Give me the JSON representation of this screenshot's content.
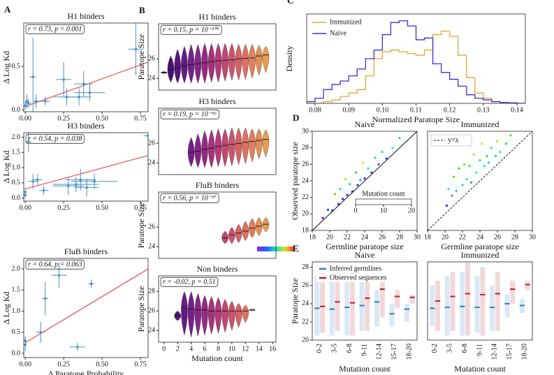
{
  "chart_data": [
    {
      "type": "scatter",
      "panel": "A",
      "title": "H1 binders",
      "annotation": "r = 0.73, p = 0.001",
      "ylabel": "Δ Log Kd",
      "x": [
        0.0,
        0.01,
        0.02,
        0.05,
        0.07,
        0.13,
        0.25,
        0.27,
        0.35,
        0.38,
        0.42,
        0.72
      ],
      "y": [
        0.05,
        0.1,
        0.08,
        0.38,
        0.1,
        0.1,
        0.35,
        0.15,
        0.15,
        0.3,
        0.2,
        0.7
      ],
      "xerr": [
        0.005,
        0.01,
        0.02,
        0.02,
        0.02,
        0.03,
        0.05,
        0.08,
        0.08,
        0.06,
        0.1,
        0.05
      ],
      "yerr": [
        0.05,
        0.08,
        0.05,
        0.45,
        0.08,
        0.05,
        0.2,
        0.1,
        0.1,
        0.15,
        0.1,
        0.3
      ],
      "color": "#4a90c4",
      "fit_line": {
        "x": [
          0,
          0.8
        ],
        "y": [
          0.04,
          0.55
        ],
        "color": "#e8302a"
      },
      "xlim": [
        -0.01,
        0.8
      ],
      "ylim": [
        -0.02,
        1.0
      ],
      "xticks": [
        {
          "value": 0,
          "label": "0.00"
        },
        0.25,
        {
          "value": 0.5,
          "label": "0.50"
        },
        0.75
      ],
      "yticks": [
        {
          "value": 0,
          "label": "0.0"
        },
        0.5
      ]
    },
    {
      "type": "scatter",
      "title": "H3 binders",
      "annotation": "r = 0.54, p = 0.038",
      "ylabel": "Δ Log Kd",
      "x": [
        0.0,
        0.0,
        0.02,
        0.05,
        0.08,
        0.12,
        0.28,
        0.33,
        0.36,
        0.4,
        0.45,
        0.8
      ],
      "y": [
        0.2,
        0.1,
        1.85,
        0.55,
        0.6,
        0.25,
        0.4,
        0.45,
        0.6,
        0.35,
        0.55,
        2.05
      ],
      "xerr": [
        0.005,
        0.005,
        0.02,
        0.03,
        0.03,
        0.03,
        0.1,
        0.15,
        0.1,
        0.08,
        0.15,
        0.03
      ],
      "yerr": [
        0.15,
        0.1,
        0.35,
        0.25,
        0.2,
        0.15,
        0.3,
        0.25,
        0.35,
        0.3,
        0.25,
        0.1
      ],
      "color": "#4a90c4",
      "fit_line": {
        "x": [
          0,
          0.8
        ],
        "y": [
          0.3,
          1.4
        ],
        "color": "#e8302a"
      },
      "xlim": [
        -0.01,
        0.8
      ],
      "ylim": [
        -0.1,
        2.15
      ],
      "xticks": [
        {
          "value": 0,
          "label": "0.00"
        },
        0.25,
        {
          "value": 0.5,
          "label": "0.50"
        },
        0.75
      ],
      "yticks": [
        {
          "value": 0,
          "label": "0.0"
        },
        0.5,
        {
          "value": 1,
          "label": "1.0"
        },
        1.5,
        {
          "value": 2,
          "label": "2.0"
        }
      ]
    },
    {
      "type": "scatter",
      "title": "FluB binders",
      "annotation": "r = 0.64, p = 0.063",
      "ylabel": "Δ Log Kd",
      "xlabel": "Δ Paratope Probability",
      "x": [
        0.0,
        0.0,
        0.1,
        0.13,
        0.22,
        0.34,
        0.43
      ],
      "y": [
        0.2,
        0.3,
        0.5,
        1.3,
        1.85,
        0.15,
        1.65
      ],
      "xerr": [
        0.005,
        0.005,
        0.03,
        0.02,
        0.05,
        0.05,
        0.02
      ],
      "yerr": [
        0.15,
        0.1,
        0.25,
        0.4,
        0.3,
        0.1,
        0.1
      ],
      "color": "#4a90c4",
      "fit_line": {
        "x": [
          0,
          0.8
        ],
        "y": [
          0.25,
          2.0
        ],
        "color": "#e8302a"
      },
      "xlim": [
        -0.01,
        0.8
      ],
      "ylim": [
        -0.1,
        2.25
      ],
      "xticks": [
        {
          "value": 0,
          "label": "0.00"
        },
        0.25,
        {
          "value": 0.5,
          "label": "0.50"
        },
        0.75
      ],
      "yticks": [
        {
          "value": 0,
          "label": "0.0"
        },
        0.5,
        {
          "value": 1,
          "label": "1.0"
        },
        1.5,
        {
          "value": 2,
          "label": "2.0"
        }
      ]
    },
    {
      "type": "violin",
      "panel": "B",
      "title": "H1 binders",
      "annotation": "r = 0.15, p = 10⁻³⁰⁹",
      "ylabel": "Paratope Size",
      "positions": [
        0,
        1,
        2,
        3,
        4,
        5,
        6,
        7,
        8,
        9,
        10,
        11,
        12,
        13,
        14,
        15
      ],
      "medians": [
        24.6,
        24.9,
        25.1,
        25.3,
        25.4,
        25.5,
        25.6,
        25.7,
        25.8,
        25.85,
        25.9,
        26.0,
        26.05,
        26.1,
        26.3,
        26.4
      ],
      "lows": [
        24.5,
        23.6,
        23.5,
        23.5,
        23.5,
        23.5,
        23.5,
        23.6,
        23.6,
        23.7,
        23.8,
        23.8,
        23.9,
        24.0,
        24.3,
        24.6
      ],
      "highs": [
        24.7,
        26.3,
        27.0,
        27.3,
        27.5,
        27.5,
        27.6,
        27.6,
        27.6,
        27.6,
        27.6,
        27.5,
        27.5,
        27.5,
        27.4,
        27.3
      ],
      "colormap": [
        "#2d0a5c",
        "#6b1d8a",
        "#b5367a",
        "#e0735f",
        "#eab24a"
      ],
      "xlim": [
        -0.8,
        16.5
      ],
      "ylim": [
        22.8,
        29.6
      ],
      "yticks": [
        24,
        26
      ]
    },
    {
      "type": "violin",
      "title": "H3 binders",
      "annotation": "r = 0.19, p = 10⁻⁵⁶",
      "positions": [
        4,
        5,
        6,
        7,
        8,
        9,
        10,
        11,
        12,
        13,
        14,
        15
      ],
      "medians": [
        25.1,
        25.2,
        25.4,
        25.5,
        25.7,
        25.8,
        25.9,
        26.0,
        26.1,
        26.2,
        26.3,
        26.4
      ],
      "lows": [
        23.6,
        23.5,
        23.5,
        23.5,
        23.6,
        23.6,
        23.7,
        23.8,
        23.9,
        24.1,
        24.4,
        24.6
      ],
      "highs": [
        26.6,
        27.0,
        27.3,
        27.4,
        27.5,
        27.5,
        27.6,
        27.6,
        27.6,
        27.5,
        27.5,
        27.4
      ],
      "colormap": [
        "#2d0a5c",
        "#6b1d8a",
        "#b5367a",
        "#e0735f",
        "#eab24a"
      ],
      "xlim": [
        -0.8,
        16.5
      ],
      "ylim": [
        22.8,
        29.6
      ],
      "yticks": [
        24,
        26
      ]
    },
    {
      "type": "violin",
      "title": "FluB binders",
      "annotation": "r = 0.56, p = 10⁻¹⁷",
      "ylabel": "Paratope Size",
      "positions": [
        9,
        10,
        11,
        12,
        13,
        14,
        15
      ],
      "medians": [
        24.9,
        25.2,
        25.4,
        25.6,
        25.9,
        26.1,
        26.3
      ],
      "lows": [
        24.3,
        24.3,
        24.4,
        24.6,
        24.9,
        25.1,
        25.5
      ],
      "highs": [
        25.6,
        26.0,
        26.3,
        26.6,
        26.9,
        27.0,
        27.0
      ],
      "colormap": [
        "#2d0a5c",
        "#6b1d8a",
        "#b5367a",
        "#e0735f",
        "#eab24a"
      ],
      "xlim": [
        -0.8,
        16.5
      ],
      "ylim": [
        22.8,
        29.6
      ],
      "yticks": [
        24,
        26
      ]
    },
    {
      "type": "violin",
      "title": "Non binders",
      "annotation": "r = -0.02, p = 0.51",
      "ylabel": "Paratope Size",
      "xlabel": "Mutation count",
      "positions": [
        2,
        3,
        4,
        5,
        6,
        7,
        8,
        9,
        10,
        11,
        12,
        13
      ],
      "medians": [
        25.5,
        26.3,
        26.2,
        26.1,
        26.1,
        26.0,
        26.0,
        26.0,
        26.0,
        26.0,
        26.0,
        26.1
      ],
      "lows": [
        25.0,
        23.5,
        23.3,
        23.4,
        23.5,
        23.6,
        23.7,
        23.8,
        24.0,
        24.3,
        24.8,
        26.0
      ],
      "highs": [
        26.0,
        28.0,
        28.0,
        27.8,
        27.6,
        27.5,
        27.4,
        27.2,
        27.0,
        26.8,
        26.6,
        26.2
      ],
      "colormap": [
        "#2d0a5c",
        "#6b1d8a",
        "#b5367a",
        "#e0735f",
        "#eab24a"
      ],
      "xlim": [
        -0.8,
        16.5
      ],
      "ylim": [
        22.8,
        29.6
      ],
      "yticks": [
        24,
        26,
        28
      ],
      "xticks": [
        0,
        2,
        4,
        6,
        8,
        10,
        12,
        14,
        16
      ]
    },
    {
      "type": "histogram",
      "panel": "C",
      "xlabel": "Normalized Paratope Size",
      "ylabel": "Density",
      "legend": "upper left",
      "bins": [
        0.0775,
        0.08,
        0.0825,
        0.085,
        0.0875,
        0.09,
        0.0925,
        0.095,
        0.0975,
        0.1,
        0.1025,
        0.105,
        0.1075,
        0.11,
        0.1125,
        0.115,
        0.1175,
        0.12,
        0.1225,
        0.125,
        0.1275,
        0.13,
        0.1325,
        0.135,
        0.1375,
        0.14,
        0.1425
      ],
      "series": [
        {
          "name": "Immunized",
          "color": "#e8a531",
          "values": [
            0,
            0,
            1,
            2,
            4,
            6,
            8,
            16,
            26,
            30,
            31,
            30,
            29,
            28,
            31,
            40,
            42,
            39,
            28,
            15,
            6,
            3,
            1,
            0.5,
            0,
            0
          ]
        },
        {
          "name": "Naive",
          "color": "#3a2fd6",
          "values": [
            1,
            3,
            8,
            11,
            13,
            16,
            20,
            26,
            31,
            40,
            47,
            48,
            45,
            37,
            38,
            23,
            18,
            14,
            10,
            5,
            3,
            2,
            1,
            0.5,
            0.3,
            0
          ]
        }
      ],
      "xlim": [
        0.0775,
        0.1425
      ],
      "ylim": [
        0,
        52
      ],
      "xticks": [
        0.08,
        0.09,
        {
          "value": 0.1,
          "label": "0.10"
        },
        0.11,
        0.12,
        0.13,
        0.14
      ]
    },
    {
      "type": "scatter",
      "panel": "D",
      "title": "Naive",
      "xlabel": "Germline paratope size",
      "ylabel": "Observed paratope size",
      "x": [
        19.2,
        19.8,
        20.3,
        20.6,
        21.0,
        21.2,
        21.5,
        21.8,
        22.0,
        22.3,
        22.6,
        23.0,
        23.2,
        23.5,
        23.8,
        24.0,
        24.4,
        24.8,
        25.2,
        25.6,
        26.0,
        26.5,
        27.2,
        28.0
      ],
      "y": [
        19.5,
        20.5,
        20.4,
        22.4,
        21.2,
        23.0,
        21.8,
        24.2,
        22.3,
        23.6,
        22.7,
        25.0,
        23.5,
        24.1,
        26.2,
        24.3,
        25.5,
        25.0,
        26.8,
        26.0,
        27.5,
        26.7,
        28.0,
        29.2
      ],
      "mutations": [
        1,
        3,
        2,
        12,
        1,
        9,
        2,
        14,
        1,
        6,
        2,
        11,
        3,
        5,
        15,
        2,
        8,
        3,
        10,
        4,
        9,
        3,
        7,
        6
      ],
      "color_lim": [
        0,
        20
      ],
      "identity_line": "solid",
      "colorbar": {
        "label": "Mutation count",
        "ticks": [
          0,
          10,
          20
        ]
      },
      "xlim": [
        18,
        30
      ],
      "ylim": [
        18,
        30
      ],
      "xticks": [
        18,
        20,
        22,
        24,
        26,
        28,
        30
      ],
      "yticks": [
        18,
        20,
        22,
        24,
        26,
        28,
        30
      ]
    },
    {
      "type": "scatter",
      "title": "Immunized",
      "xlabel": "Germline paratope size",
      "identity_label": "y=x",
      "legend": "upper left",
      "x": [
        20.2,
        20.4,
        20.8,
        21.0,
        21.3,
        21.6,
        22.0,
        22.2,
        22.5,
        22.8,
        23.0,
        23.3,
        23.6,
        24.0,
        24.2,
        24.5,
        24.8,
        25.0,
        25.3,
        25.8,
        26.0,
        26.3,
        27.0,
        27.5
      ],
      "y": [
        21.0,
        23.0,
        22.2,
        24.5,
        22.8,
        25.5,
        23.5,
        26.0,
        24.2,
        25.8,
        23.8,
        27.2,
        25.0,
        26.5,
        28.5,
        25.8,
        27.0,
        26.2,
        28.0,
        27.0,
        28.8,
        27.5,
        28.5,
        29.5
      ],
      "mutations": [
        3,
        8,
        5,
        12,
        6,
        10,
        6,
        13,
        7,
        10,
        5,
        14,
        8,
        9,
        16,
        7,
        11,
        6,
        12,
        9,
        14,
        8,
        10,
        12
      ],
      "color_lim": [
        0,
        20
      ],
      "identity_line": "dashed",
      "xlim": [
        18,
        30
      ],
      "ylim": [
        18,
        30
      ],
      "xticks": [
        18,
        20,
        22,
        24,
        26,
        28,
        30
      ]
    },
    {
      "type": "strip",
      "panel": "E",
      "title": "Naive",
      "xlabel": "Mutation count",
      "ylabel": "Paratope Size",
      "legend": "upper left",
      "categories": [
        "0-2",
        "3-5",
        "6-8",
        "9-11",
        "12-14",
        "15-17",
        "18-20"
      ],
      "series": [
        {
          "name": "Inferred germlines",
          "color": "#2a7fc0",
          "values": [
            23.5,
            23.4,
            23.6,
            23.8,
            24.2,
            22.9,
            23.4
          ],
          "lows": [
            20.5,
            20.5,
            20.5,
            21,
            21.5,
            21.5,
            22
          ],
          "highs": [
            27,
            26.5,
            27,
            26.5,
            25.5,
            24,
            24
          ]
        },
        {
          "name": "Observed sequences",
          "color": "#b5202a",
          "values": [
            23.7,
            24.2,
            24.1,
            24.6,
            25.6,
            24.8,
            24.7
          ],
          "lows": [
            20.8,
            21,
            20.5,
            21,
            22.5,
            23.5,
            24
          ],
          "highs": [
            27.5,
            27.5,
            27.5,
            27,
            27,
            25.5,
            25
          ]
        }
      ],
      "ylim": [
        20,
        28.6
      ],
      "yticks": [
        20,
        22,
        24,
        26,
        28
      ]
    },
    {
      "type": "strip",
      "title": "Immunized",
      "xlabel": "Mutation count",
      "categories": [
        "0-2",
        "3-5",
        "6-8",
        "9-11",
        "12-14",
        "15-17",
        "18-20"
      ],
      "series": [
        {
          "color": "#2a7fc0",
          "values": [
            23.5,
            23.6,
            23.7,
            23.6,
            23.6,
            24.0,
            23.8
          ],
          "lows": [
            21.5,
            20.5,
            20.5,
            20.8,
            21,
            22.5,
            23
          ],
          "highs": [
            26,
            27,
            27.5,
            27,
            26,
            25,
            24.5
          ]
        },
        {
          "color": "#b5202a",
          "values": [
            24.3,
            24.8,
            25.1,
            25.0,
            25.1,
            25.6,
            26.1
          ],
          "lows": [
            21,
            21,
            20.5,
            20.5,
            21,
            24,
            25.5
          ],
          "highs": [
            26.5,
            27.5,
            28.5,
            28,
            27.5,
            26.5,
            26.5
          ]
        }
      ],
      "ylim": [
        20,
        28.6
      ]
    }
  ]
}
